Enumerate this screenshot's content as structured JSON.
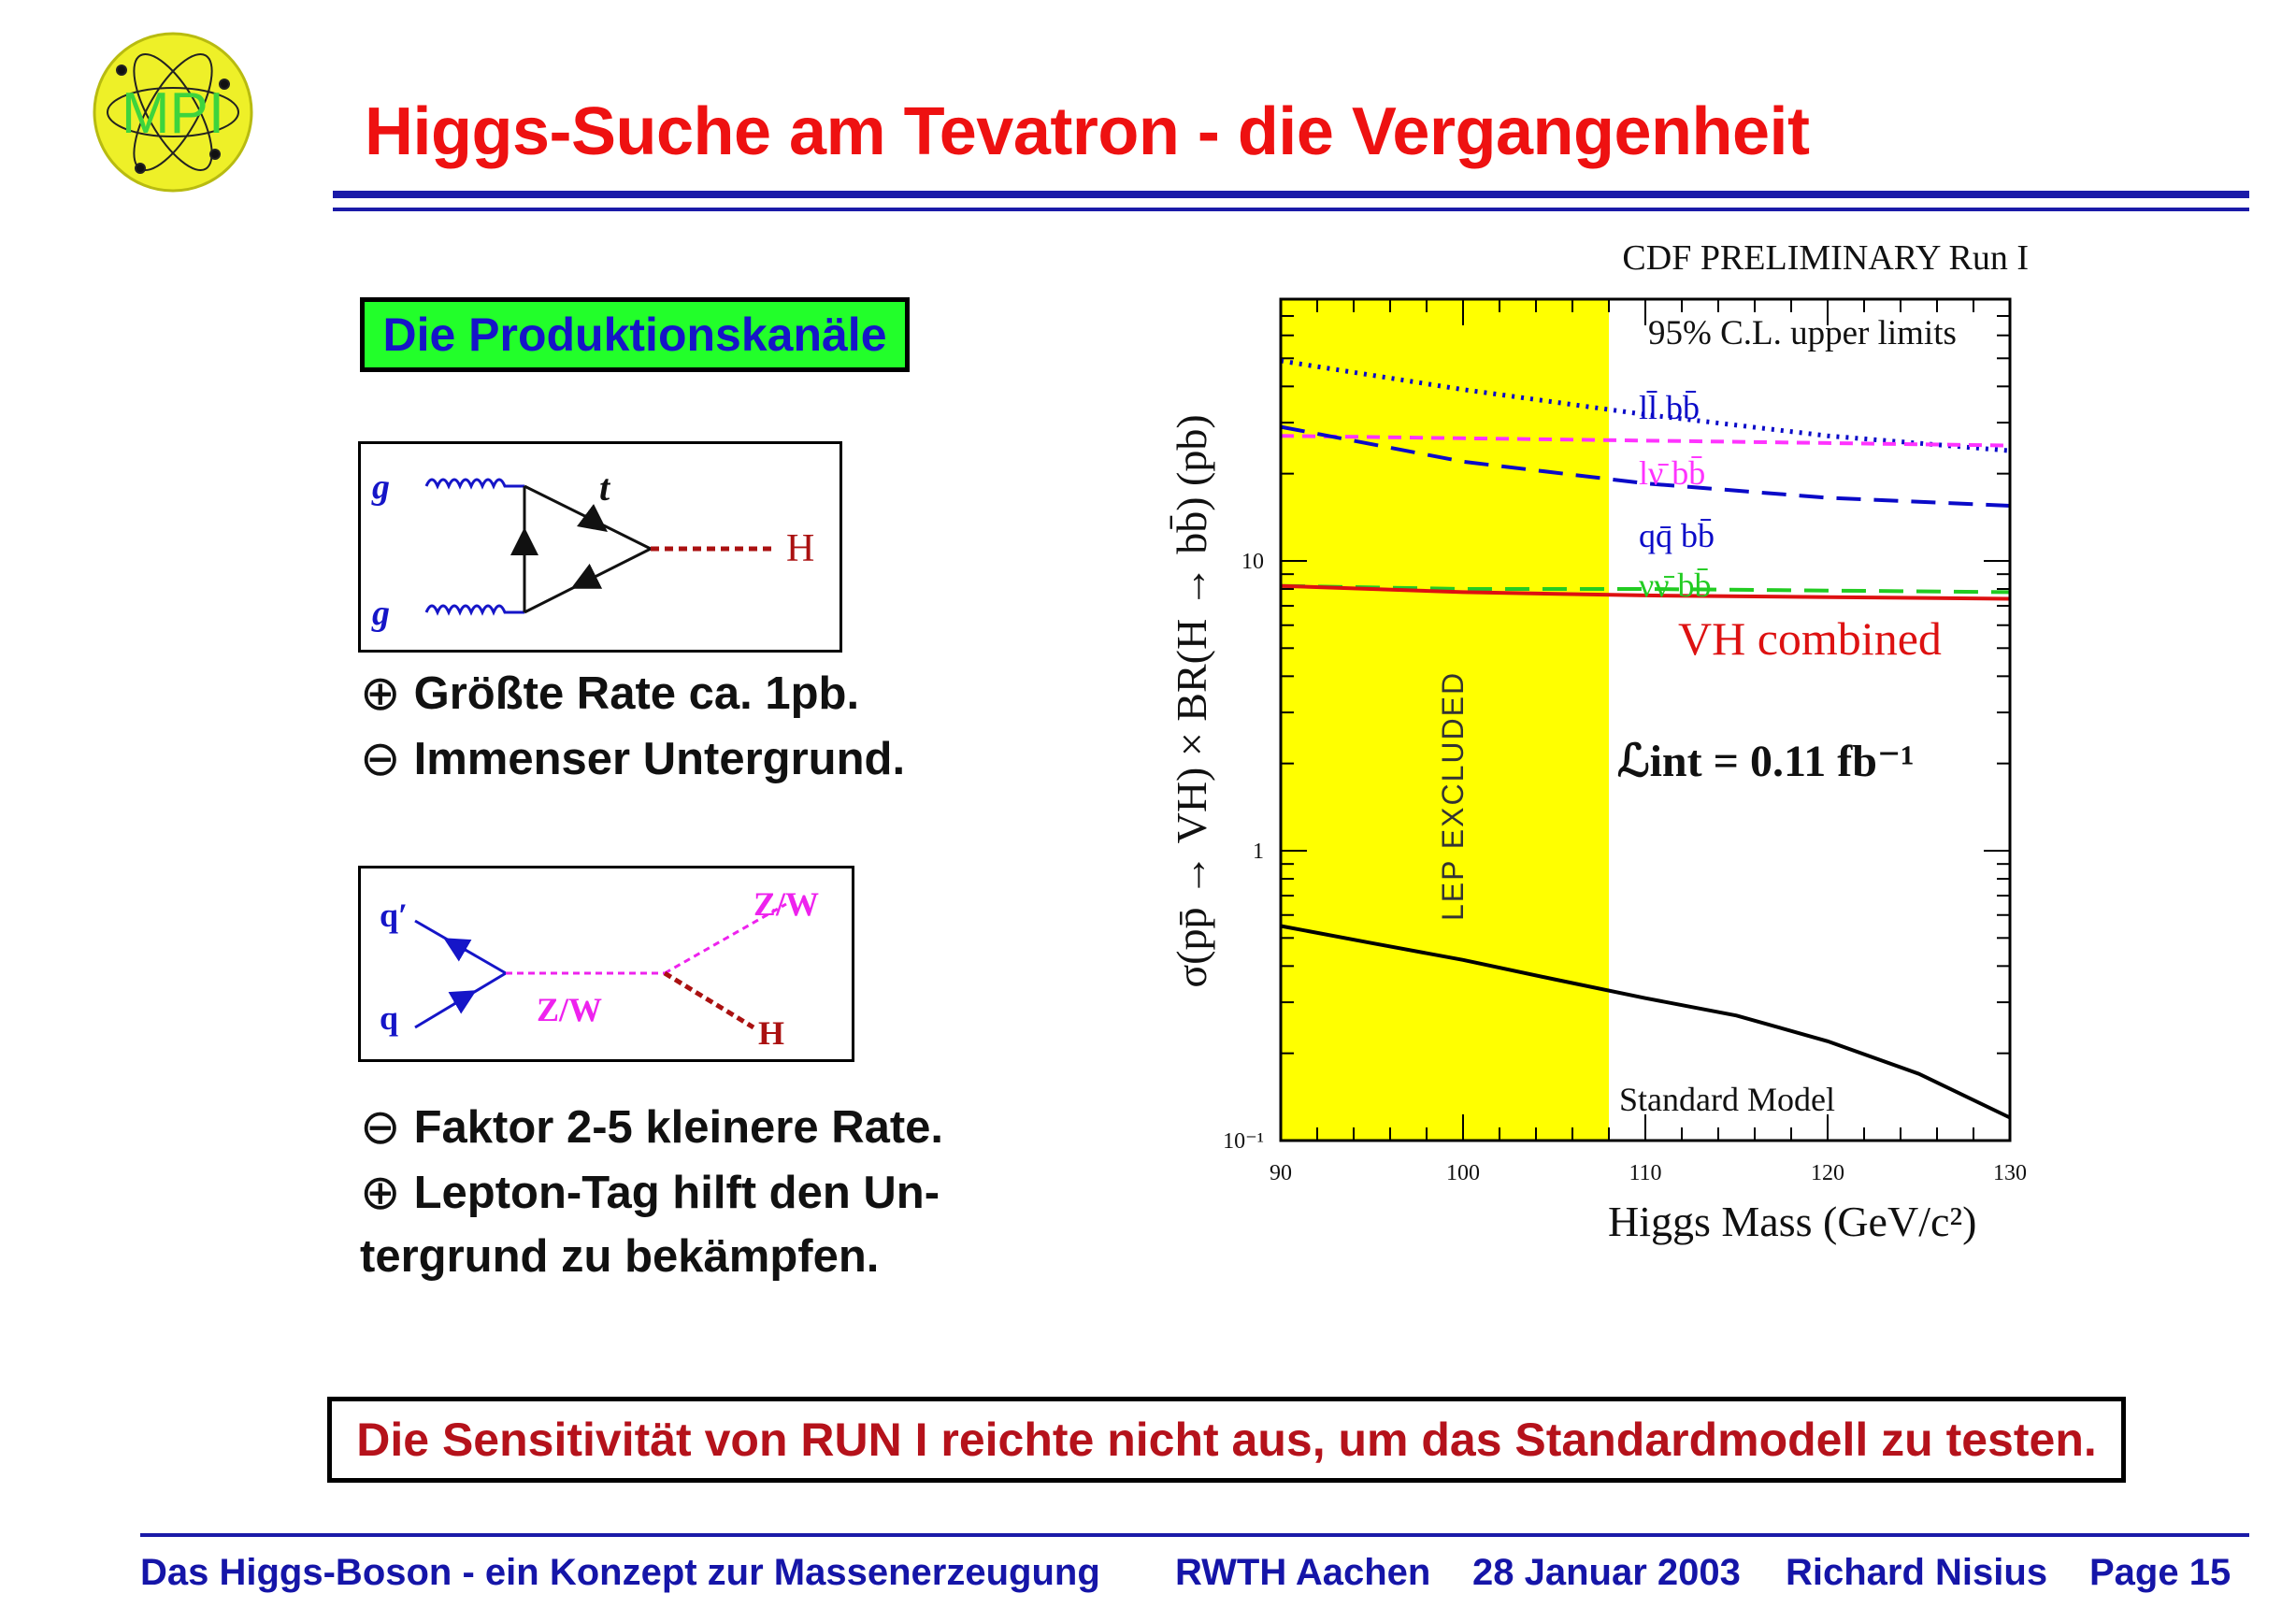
{
  "logo": {
    "text": "MPI",
    "icon": "atom-icon"
  },
  "title": "Higgs-Suche am Tevatron - die Vergangenheit",
  "subtitle_box": "Die Produktionskanäle",
  "diagram1": {
    "gluon_top": "g",
    "gluon_bottom": "g",
    "top_label": "t",
    "higgs_label": "H"
  },
  "bullets_1": [
    {
      "symbol": "⊕",
      "text": "Größte Rate ca. 1pb."
    },
    {
      "symbol": "⊖",
      "text": "Immenser Untergrund."
    }
  ],
  "diagram2": {
    "q_prime": "q′",
    "q": "q",
    "boson_out": "Z/W",
    "boson_mid": "Z/W",
    "higgs_label": "H"
  },
  "bullets_2": [
    {
      "symbol": "⊖",
      "text": "Faktor 2-5 kleinere Rate."
    },
    {
      "symbol": "⊕",
      "text": "Lepton-Tag hilft den Un-"
    },
    {
      "symbol": "",
      "text": "tergrund zu bekämpfen."
    }
  ],
  "chart_data": {
    "type": "line",
    "title": "CDF  PRELIMINARY  Run I",
    "subtitle": "95%  C.L. upper limits",
    "xlabel": "Higgs Mass (GeV/c²)",
    "ylabel": "σ(pp̄ → VH) × BR(H → bb̄) (pb)",
    "xlim": [
      90,
      130
    ],
    "ylim": [
      0.1,
      80
    ],
    "yscale": "log",
    "x_ticks": [
      "90",
      "100",
      "110",
      "120",
      "130"
    ],
    "y_ticks": [
      "10⁻¹",
      "1",
      "10"
    ],
    "excluded_region": {
      "x": [
        90,
        108
      ],
      "label": "LEP EXCLUDED",
      "color": "#ffff00"
    },
    "luminosity_label": "ℒint = 0.11 fb⁻¹",
    "series": [
      {
        "name": "ll̄ bb̄",
        "color": "#0a0ac8",
        "style": "dotted",
        "x": [
          90,
          100,
          110,
          120,
          130
        ],
        "y": [
          49,
          39,
          32,
          27,
          24
        ]
      },
      {
        "name": "lν̄ bb̄",
        "color": "#ff33ff",
        "style": "dashed",
        "x": [
          90,
          100,
          110,
          120,
          130
        ],
        "y": [
          27,
          26.5,
          26,
          25.5,
          25
        ]
      },
      {
        "name": "qq̄ bb̄",
        "color": "#0a0ac8",
        "style": "longdash",
        "x": [
          90,
          100,
          110,
          120,
          130
        ],
        "y": [
          29,
          22,
          18.5,
          16.5,
          15.5
        ]
      },
      {
        "name": "νν̄ bb̄",
        "color": "#22cc22",
        "style": "longdash",
        "x": [
          90,
          100,
          110,
          120,
          130
        ],
        "y": [
          8.2,
          8.0,
          8.0,
          7.9,
          7.8
        ]
      },
      {
        "name": "VH combined",
        "color": "#dd1111",
        "style": "solid",
        "x": [
          90,
          100,
          110,
          120,
          130
        ],
        "y": [
          8.2,
          7.8,
          7.6,
          7.5,
          7.4
        ]
      },
      {
        "name": "Standard Model",
        "color": "#000000",
        "style": "solid",
        "x": [
          90,
          95,
          100,
          105,
          110,
          115,
          120,
          125,
          130
        ],
        "y": [
          0.55,
          0.48,
          0.42,
          0.36,
          0.31,
          0.27,
          0.22,
          0.17,
          0.12
        ]
      }
    ]
  },
  "conclusion": "Die Sensitivität von RUN I reichte nicht aus, um das Standardmodell zu testen.",
  "footer": {
    "talk": "Das Higgs-Boson - ein Konzept zur Massenerzeugung",
    "place": "RWTH Aachen",
    "date": "28 Januar 2003",
    "author": "Richard Nisius",
    "page": "Page 15"
  }
}
